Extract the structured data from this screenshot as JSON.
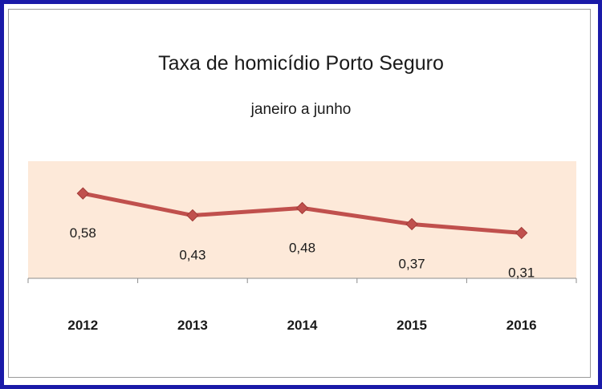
{
  "chart_data": {
    "type": "line",
    "title": "Taxa de homicídio Porto Seguro",
    "subtitle": "janeiro a junho",
    "categories": [
      "2012",
      "2013",
      "2014",
      "2015",
      "2016"
    ],
    "series": [
      {
        "values": [
          0.58,
          0.43,
          0.48,
          0.37,
          0.31
        ]
      }
    ],
    "data_labels": [
      "0,58",
      "0,43",
      "0,48",
      "0,37",
      "0,31"
    ],
    "ylim": [
      0,
      0.8
    ],
    "grid": false,
    "legend": "none",
    "colors": {
      "line": "#c0504d",
      "plot_area": "#fde9d9",
      "frame_border": "#1a1aa8"
    }
  }
}
